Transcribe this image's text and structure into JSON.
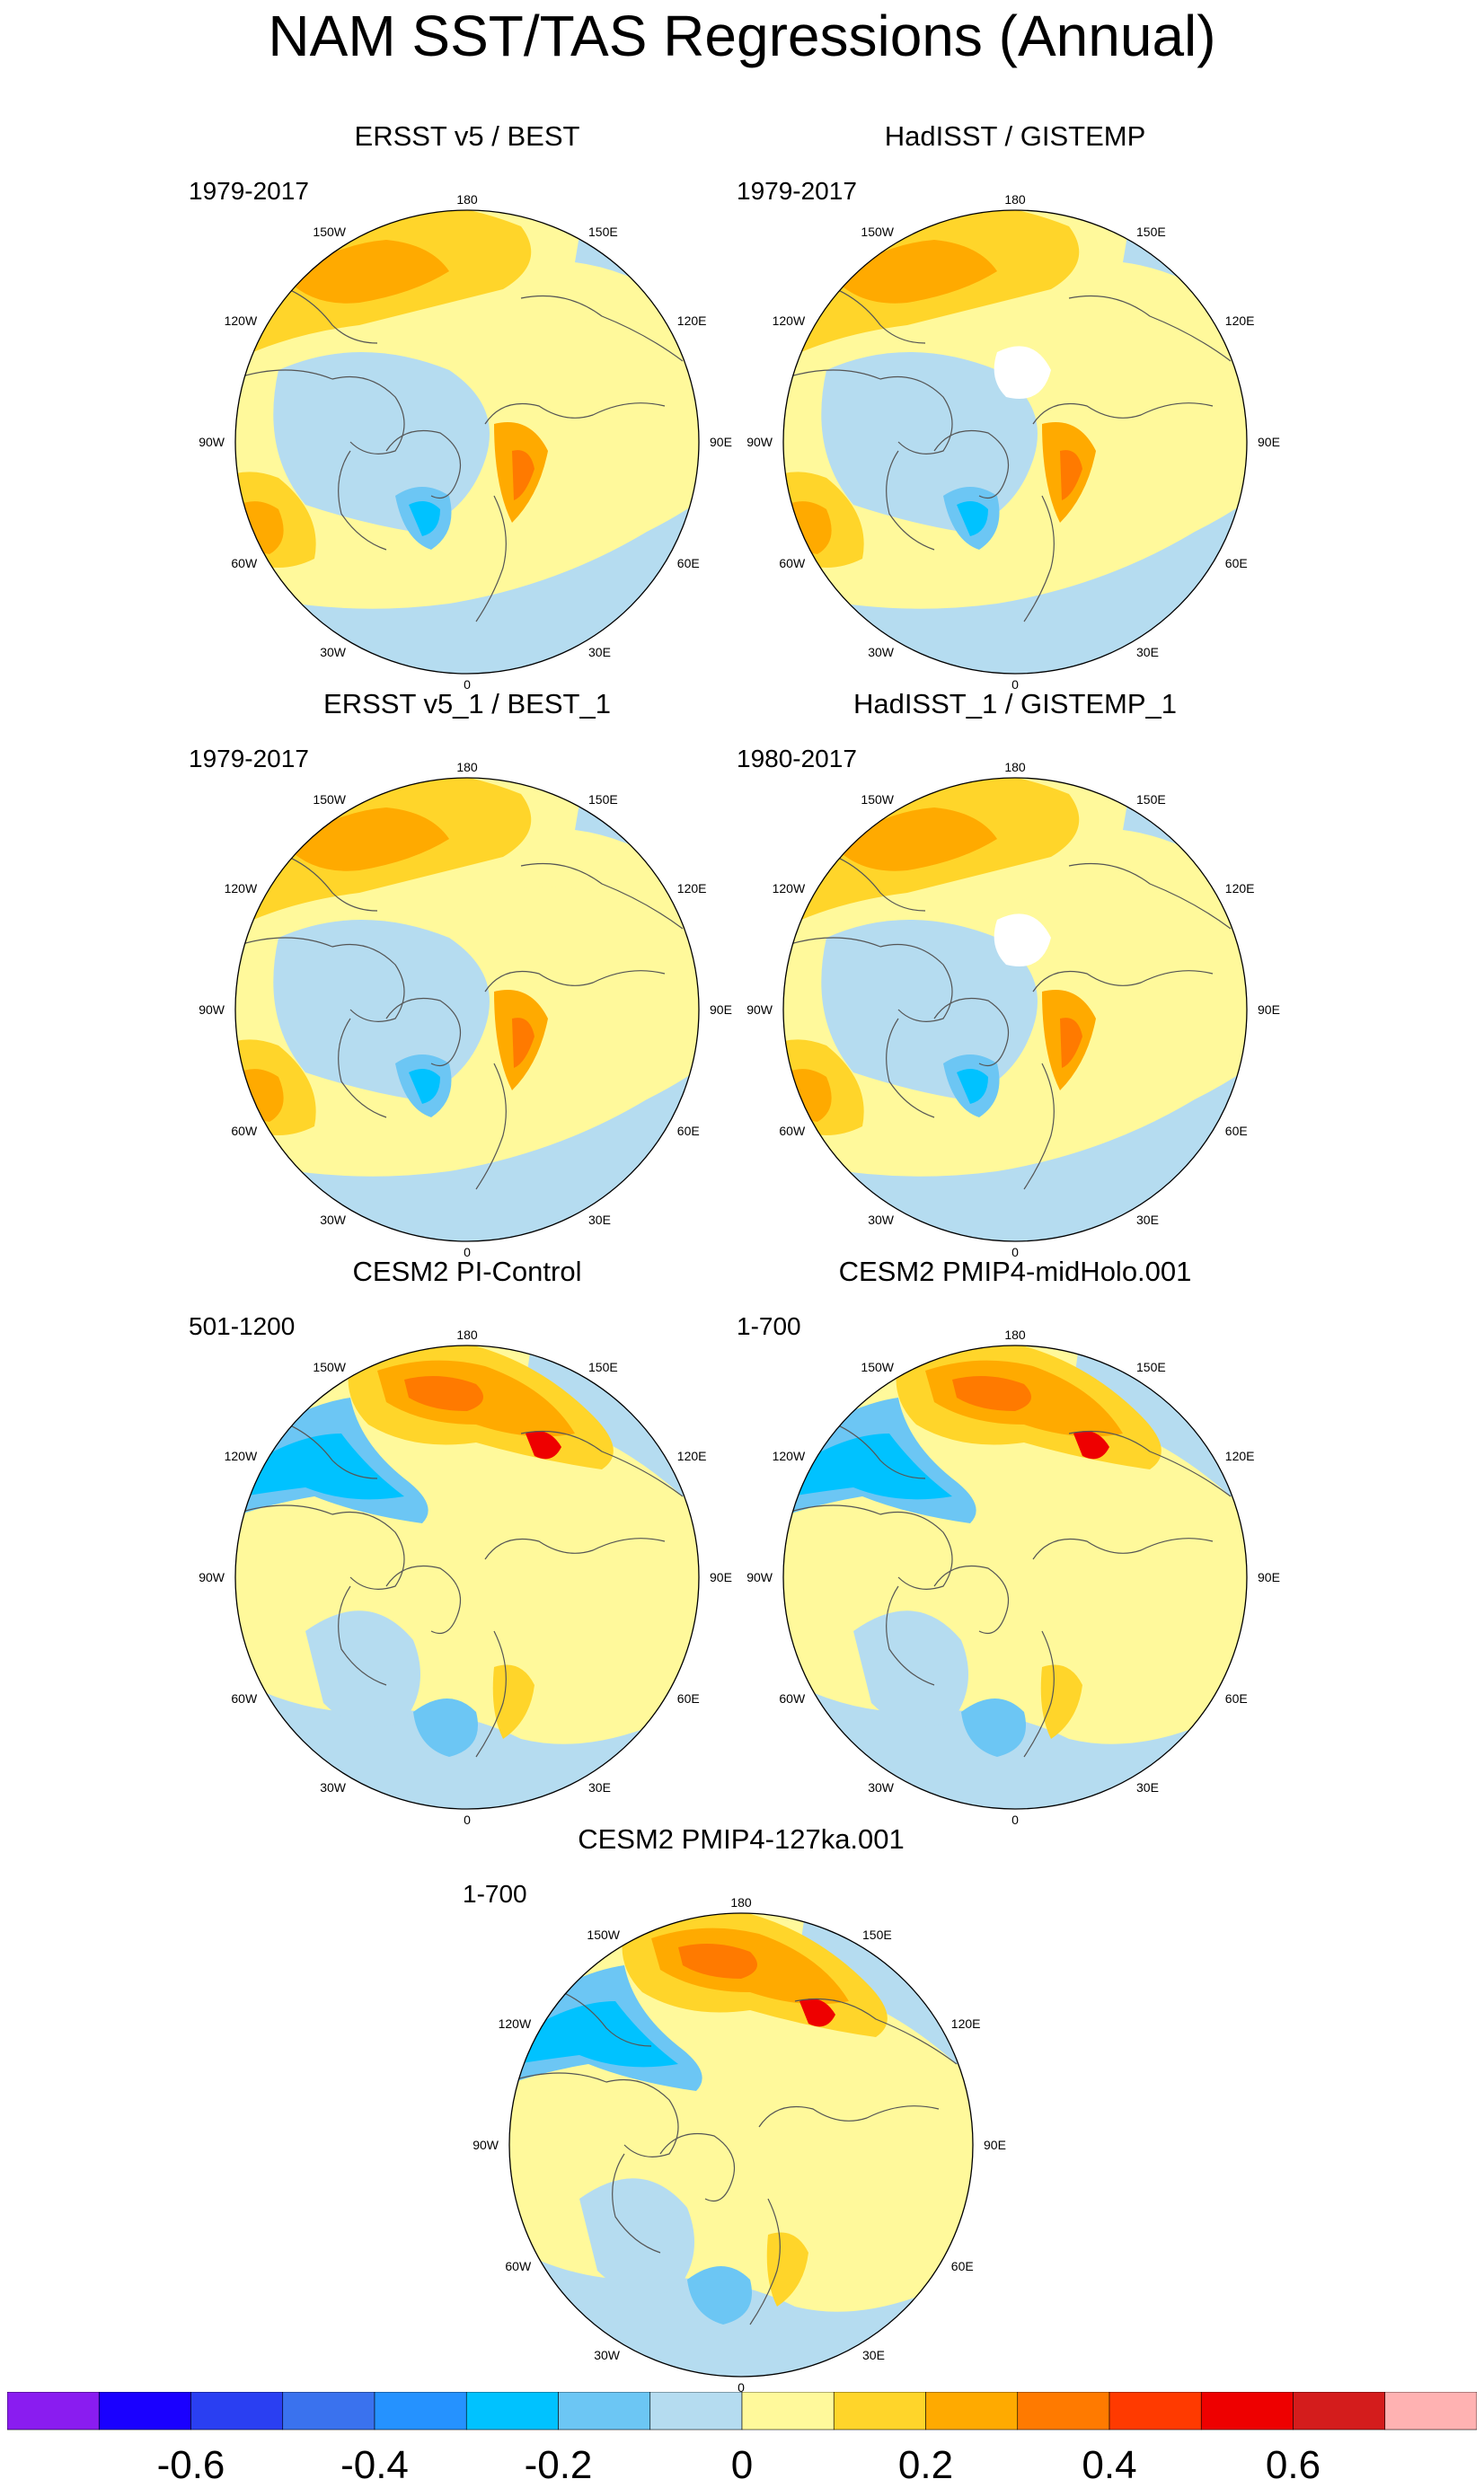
{
  "title": "NAM SST/TAS Regressions (Annual)",
  "panels": [
    {
      "title": "ERSST v5 / BEST",
      "period": "1979-2017",
      "map_style": "obs-warm-pacific"
    },
    {
      "title": "HadISST / GISTEMP",
      "period": "1979-2017",
      "map_style": "obs-arctic-missing"
    },
    {
      "title": "ERSST v5_1 / BEST_1",
      "period": "1979-2017",
      "map_style": "obs-warm-pacific"
    },
    {
      "title": "HadISST_1 / GISTEMP_1",
      "period": "1980-2017",
      "map_style": "obs-arctic-missing"
    },
    {
      "title": "CESM2 PI-Control",
      "period": "501-1200",
      "map_style": "model"
    },
    {
      "title": "CESM2 PMIP4-midHolo.001",
      "period": "1-700",
      "map_style": "model"
    },
    {
      "title": "CESM2 PMIP4-127ka.001",
      "period": "1-700",
      "map_style": "model"
    }
  ],
  "longitude_labels": [
    "180",
    "150E",
    "120E",
    "90E",
    "60E",
    "30E",
    "0",
    "30W",
    "60W",
    "90W",
    "120W",
    "150W"
  ],
  "chart_data": {
    "type": "heatmap",
    "projection": "north polar stereographic",
    "title": "NAM SST/TAS Regressions (Annual)",
    "colorbar": {
      "colors": [
        "#8a1cf0",
        "#1a00ff",
        "#2a3ff2",
        "#3a72ee",
        "#2592ff",
        "#00c2ff",
        "#6cc6f4",
        "#b5dcf0",
        "#fff99b",
        "#ffd52a",
        "#ffaa00",
        "#ff7a00",
        "#ff3a00",
        "#ee0000",
        "#d41c1c",
        "#ffb2b2"
      ],
      "tick_labels": [
        "-0.6",
        "-0.4",
        "-0.2",
        "0",
        "0.2",
        "0.4",
        "0.6"
      ],
      "tick_values": [
        -0.6,
        -0.4,
        -0.2,
        0,
        0.2,
        0.4,
        0.6
      ]
    }
  }
}
